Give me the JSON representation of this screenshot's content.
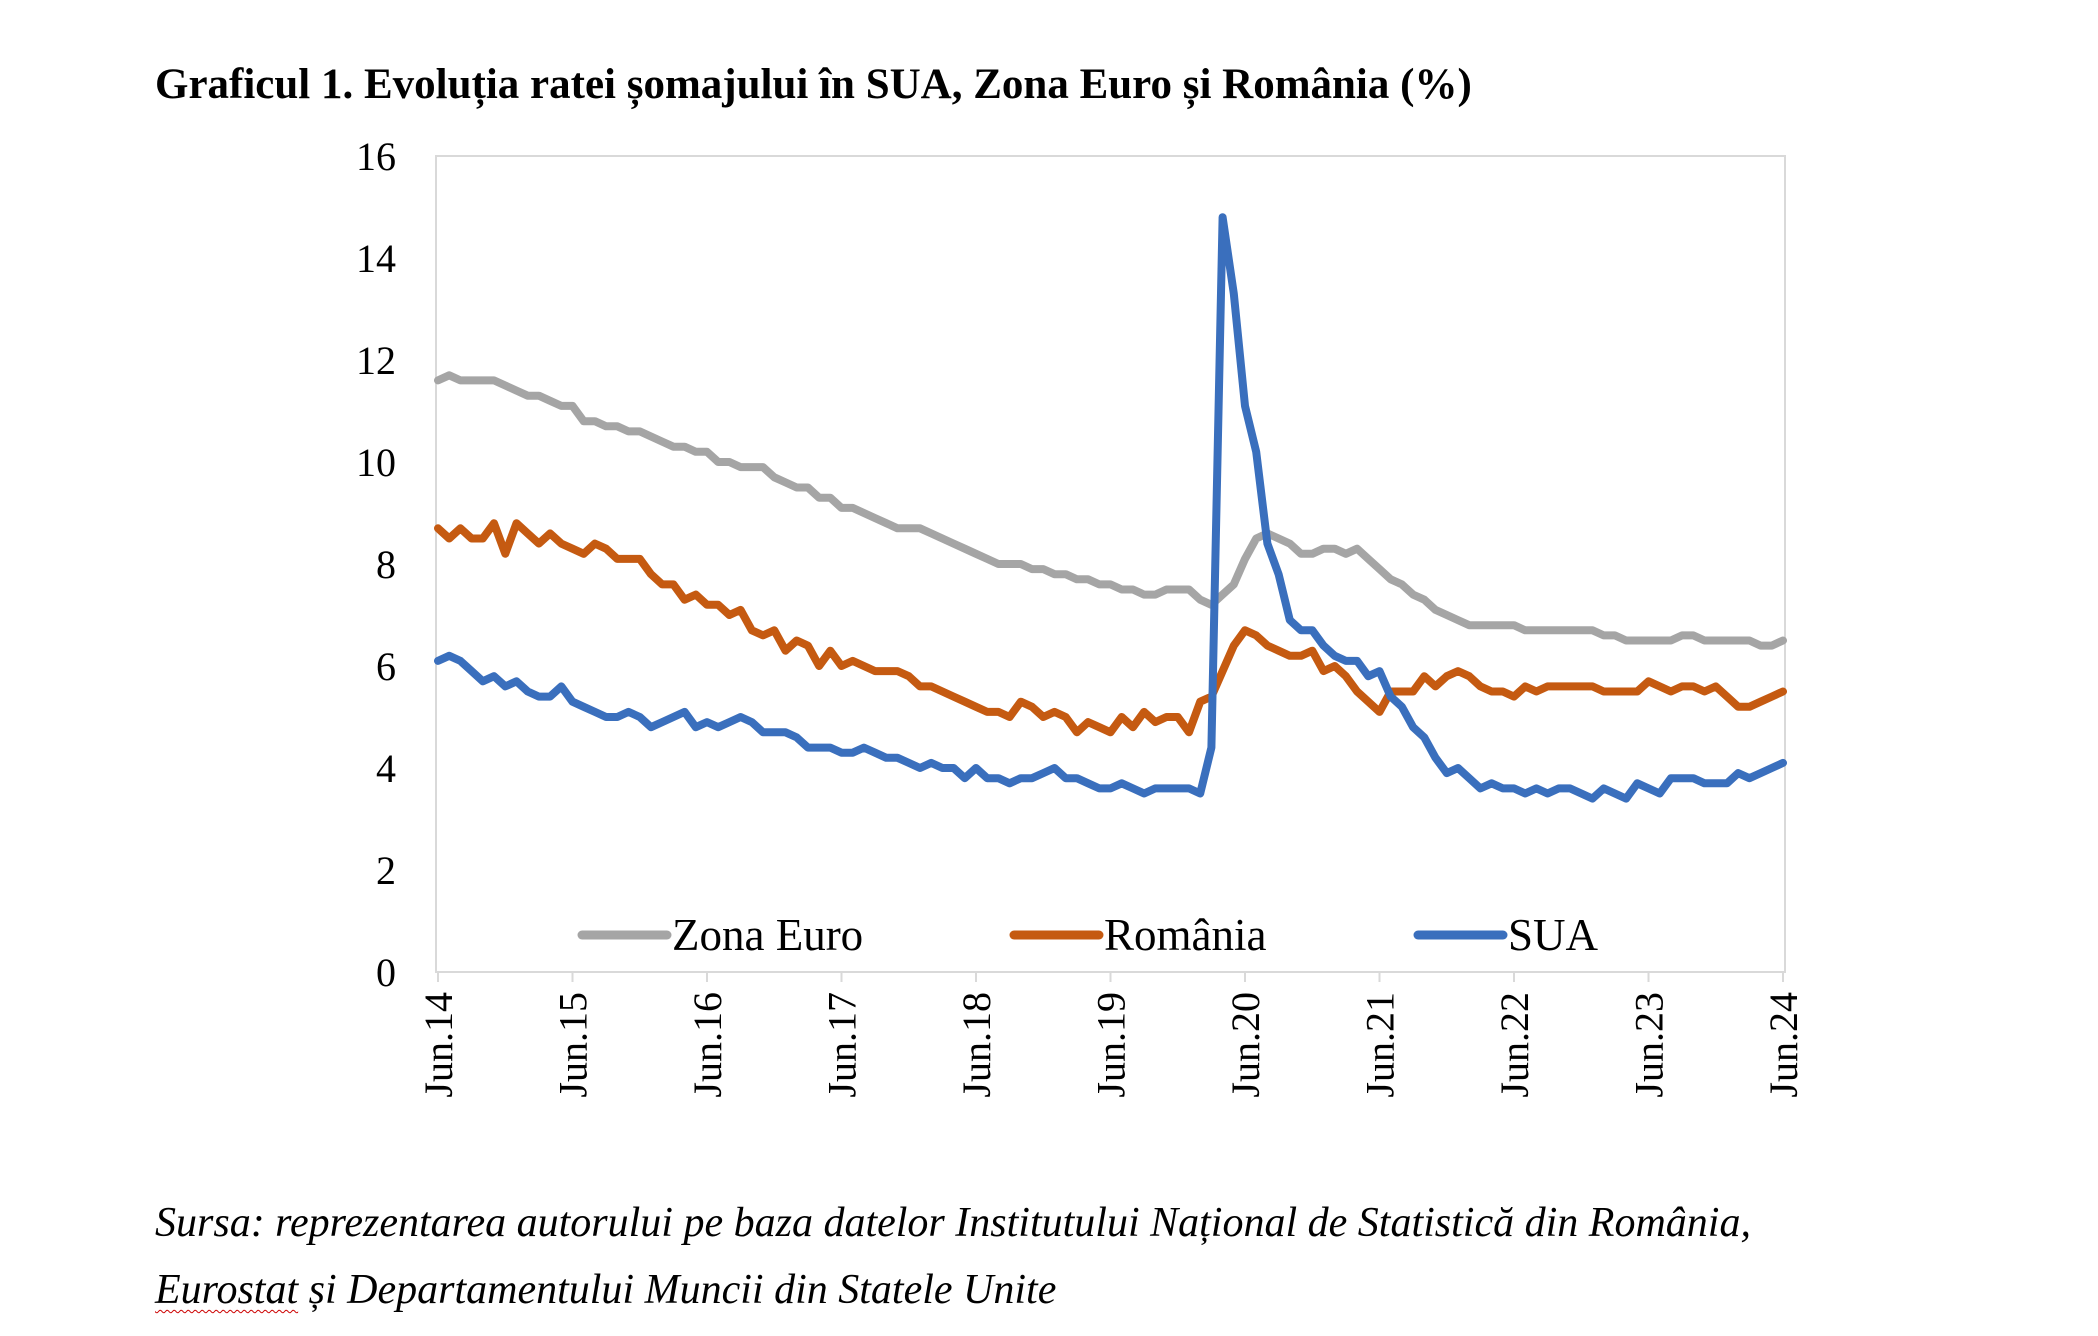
{
  "title": "Graficul 1. Evoluția ratei șomajului în SUA, Zona Euro și România (%)",
  "source": {
    "line1": "Sursa: reprezentarea autorului pe baza datelor Institutului Național de Statistică din România,",
    "line2_word": "Eurostat",
    "line2_rest": " și Departamentului Muncii din Statele Unite"
  },
  "colors": {
    "zona_euro": "#a5a5a5",
    "romania": "#c55a11",
    "sua": "#3a6fbd",
    "axis": "#d9d9d9"
  },
  "chart_data": {
    "type": "line",
    "x_ticks": [
      "Jun.14",
      "Jun.15",
      "Jun.16",
      "Jun.17",
      "Jun.18",
      "Jun.19",
      "Jun.20",
      "Jun.21",
      "Jun.22",
      "Jun.23",
      "Jun.24"
    ],
    "y_ticks": [
      "0",
      "2",
      "4",
      "6",
      "8",
      "10",
      "12",
      "14",
      "16"
    ],
    "ylim": [
      0,
      16
    ],
    "grid": false,
    "legend_position": "bottom-inside",
    "series": [
      {
        "name": "Zona Euro",
        "values": [
          11.6,
          11.7,
          11.6,
          11.6,
          11.6,
          11.6,
          11.5,
          11.4,
          11.3,
          11.3,
          11.2,
          11.1,
          11.1,
          10.8,
          10.8,
          10.7,
          10.7,
          10.6,
          10.6,
          10.5,
          10.4,
          10.3,
          10.3,
          10.2,
          10.2,
          10.0,
          10.0,
          9.9,
          9.9,
          9.9,
          9.7,
          9.6,
          9.5,
          9.5,
          9.3,
          9.3,
          9.1,
          9.1,
          9.0,
          8.9,
          8.8,
          8.7,
          8.7,
          8.7,
          8.6,
          8.5,
          8.4,
          8.3,
          8.2,
          8.1,
          8.0,
          8.0,
          8.0,
          7.9,
          7.9,
          7.8,
          7.8,
          7.7,
          7.7,
          7.6,
          7.6,
          7.5,
          7.5,
          7.4,
          7.4,
          7.5,
          7.5,
          7.5,
          7.3,
          7.2,
          7.4,
          7.6,
          8.1,
          8.5,
          8.6,
          8.5,
          8.4,
          8.2,
          8.2,
          8.3,
          8.3,
          8.2,
          8.3,
          8.1,
          7.9,
          7.7,
          7.6,
          7.4,
          7.3,
          7.1,
          7.0,
          6.9,
          6.8,
          6.8,
          6.8,
          6.8,
          6.8,
          6.7,
          6.7,
          6.7,
          6.7,
          6.7,
          6.7,
          6.7,
          6.6,
          6.6,
          6.5,
          6.5,
          6.5,
          6.5,
          6.5,
          6.6,
          6.6,
          6.5,
          6.5,
          6.5,
          6.5,
          6.5,
          6.4,
          6.4,
          6.5
        ]
      },
      {
        "name": "România",
        "values": [
          8.7,
          8.5,
          8.7,
          8.5,
          8.5,
          8.8,
          8.2,
          8.8,
          8.6,
          8.4,
          8.6,
          8.4,
          8.3,
          8.2,
          8.4,
          8.3,
          8.1,
          8.1,
          8.1,
          7.8,
          7.6,
          7.6,
          7.3,
          7.4,
          7.2,
          7.2,
          7.0,
          7.1,
          6.7,
          6.6,
          6.7,
          6.3,
          6.5,
          6.4,
          6.0,
          6.3,
          6.0,
          6.1,
          6.0,
          5.9,
          5.9,
          5.9,
          5.8,
          5.6,
          5.6,
          5.5,
          5.4,
          5.3,
          5.2,
          5.1,
          5.1,
          5.0,
          5.3,
          5.2,
          5.0,
          5.1,
          5.0,
          4.7,
          4.9,
          4.8,
          4.7,
          5.0,
          4.8,
          5.1,
          4.9,
          5.0,
          5.0,
          4.7,
          5.3,
          5.4,
          5.9,
          6.4,
          6.7,
          6.6,
          6.4,
          6.3,
          6.2,
          6.2,
          6.3,
          5.9,
          6.0,
          5.8,
          5.5,
          5.3,
          5.1,
          5.5,
          5.5,
          5.5,
          5.8,
          5.6,
          5.8,
          5.9,
          5.8,
          5.6,
          5.5,
          5.5,
          5.4,
          5.6,
          5.5,
          5.6,
          5.6,
          5.6,
          5.6,
          5.6,
          5.5,
          5.5,
          5.5,
          5.5,
          5.7,
          5.6,
          5.5,
          5.6,
          5.6,
          5.5,
          5.6,
          5.4,
          5.2,
          5.2,
          5.3,
          5.4,
          5.5
        ]
      },
      {
        "name": "SUA",
        "values": [
          6.1,
          6.2,
          6.1,
          5.9,
          5.7,
          5.8,
          5.6,
          5.7,
          5.5,
          5.4,
          5.4,
          5.6,
          5.3,
          5.2,
          5.1,
          5.0,
          5.0,
          5.1,
          5.0,
          4.8,
          4.9,
          5.0,
          5.1,
          4.8,
          4.9,
          4.8,
          4.9,
          5.0,
          4.9,
          4.7,
          4.7,
          4.7,
          4.6,
          4.4,
          4.4,
          4.4,
          4.3,
          4.3,
          4.4,
          4.3,
          4.2,
          4.2,
          4.1,
          4.0,
          4.1,
          4.0,
          4.0,
          3.8,
          4.0,
          3.8,
          3.8,
          3.7,
          3.8,
          3.8,
          3.9,
          4.0,
          3.8,
          3.8,
          3.7,
          3.6,
          3.6,
          3.7,
          3.6,
          3.5,
          3.6,
          3.6,
          3.6,
          3.6,
          3.5,
          4.4,
          14.8,
          13.3,
          11.1,
          10.2,
          8.4,
          7.8,
          6.9,
          6.7,
          6.7,
          6.4,
          6.2,
          6.1,
          6.1,
          5.8,
          5.9,
          5.4,
          5.2,
          4.8,
          4.6,
          4.2,
          3.9,
          4.0,
          3.8,
          3.6,
          3.7,
          3.6,
          3.6,
          3.5,
          3.6,
          3.5,
          3.6,
          3.6,
          3.5,
          3.4,
          3.6,
          3.5,
          3.4,
          3.7,
          3.6,
          3.5,
          3.8,
          3.8,
          3.8,
          3.7,
          3.7,
          3.7,
          3.9,
          3.8,
          3.9,
          4.0,
          4.1
        ]
      }
    ]
  }
}
